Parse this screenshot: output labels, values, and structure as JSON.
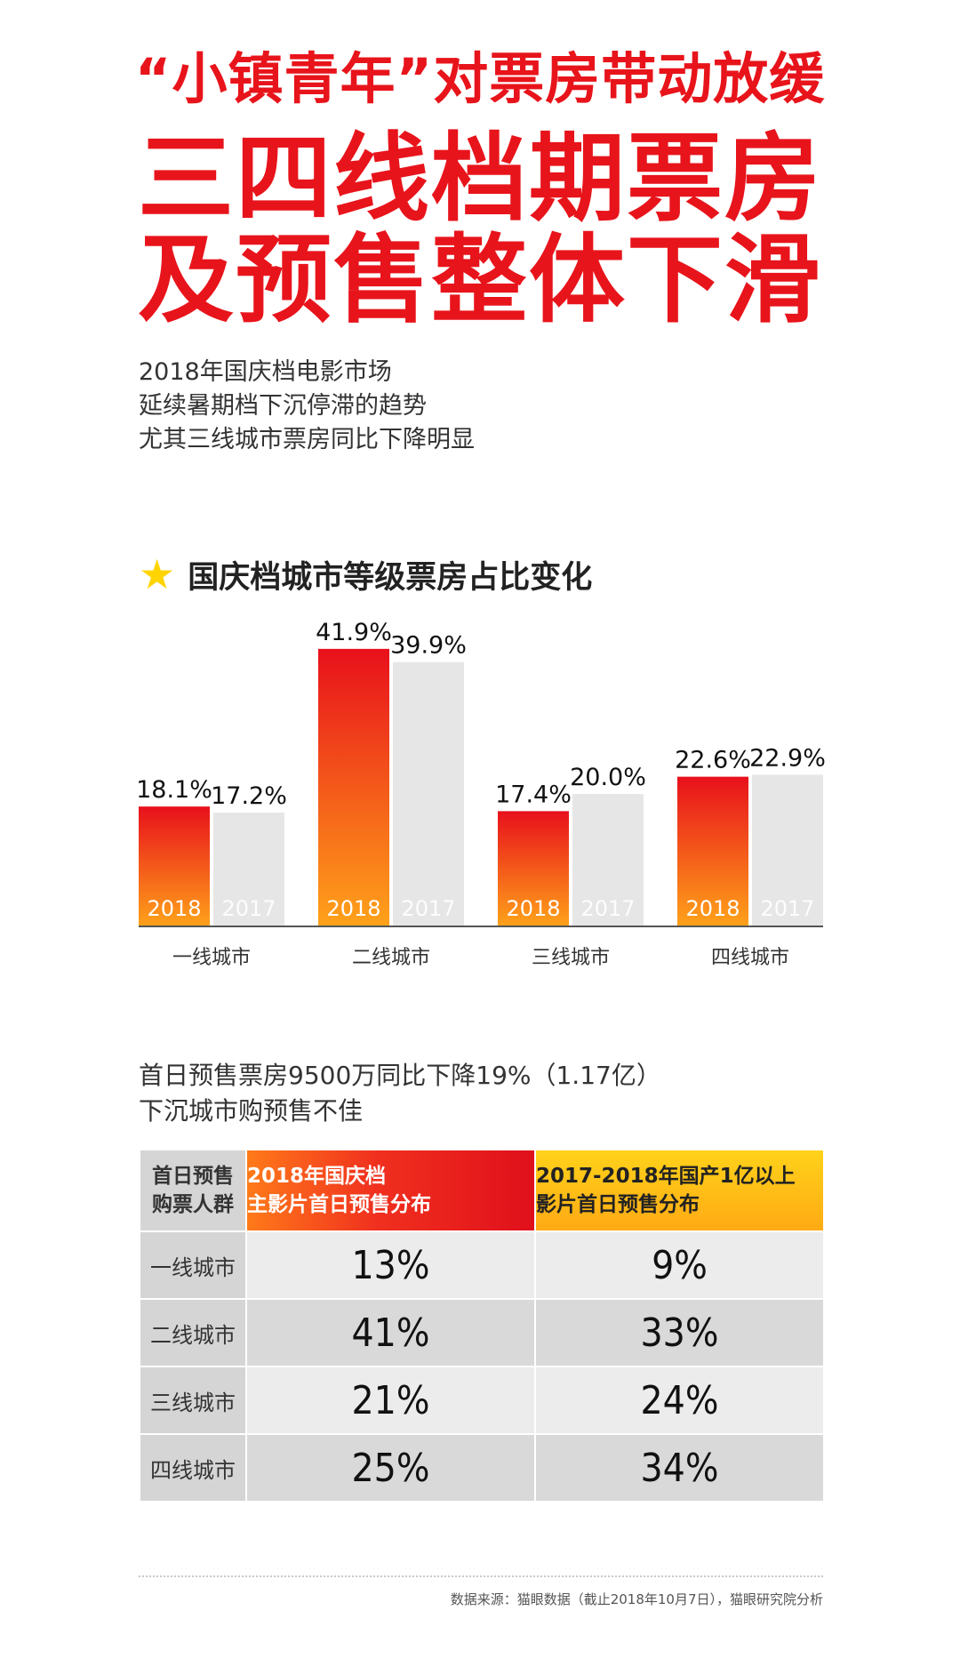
{
  "header": {
    "line1": "“小镇青年”对票房带动放缓",
    "line2": "三四线档期票房",
    "line3": "及预售整体下滑"
  },
  "intro": [
    "2018年国庆档电影市场",
    "延续暑期档下沉停滞的趋势",
    "尤其三线城市票房同比下降明显"
  ],
  "section": {
    "title": "国庆档城市等级票房占比变化",
    "icon": "star-icon"
  },
  "chart_data": {
    "type": "bar",
    "categories": [
      "一线城市",
      "二线城市",
      "三线城市",
      "四线城市"
    ],
    "series": [
      {
        "name": "2018",
        "values": [
          18.1,
          41.9,
          17.4,
          22.6
        ]
      },
      {
        "name": "2017",
        "values": [
          17.2,
          39.9,
          20.0,
          22.9
        ]
      }
    ],
    "value_labels": {
      "2018": [
        "18.1%",
        "41.9%",
        "17.4%",
        "22.6%"
      ],
      "2017": [
        "17.2%",
        "39.9%",
        "20.0%",
        "22.9%"
      ]
    },
    "ylim": [
      0,
      45
    ],
    "grid": false,
    "colors": {
      "2018_top": "#e8101b",
      "2018_bottom": "#ffa21a",
      "2017": "#e6e6e6"
    }
  },
  "presale": {
    "line1": "首日预售票房9500万同比下降19%（1.17亿）",
    "line2": "下沉城市购预售不佳"
  },
  "table": {
    "header_col0": [
      "首日预售",
      "购票人群"
    ],
    "header_col1": [
      "2018年国庆档",
      "主影片首日预售分布"
    ],
    "header_col2": [
      "2017-2018年国产1亿以上",
      "影片首日预售分布"
    ],
    "rows": [
      {
        "label": "一线城市",
        "v2018": "13%",
        "v2017": "9%"
      },
      {
        "label": "二线城市",
        "v2018": "41%",
        "v2017": "33%"
      },
      {
        "label": "三线城市",
        "v2018": "21%",
        "v2017": "24%"
      },
      {
        "label": "四线城市",
        "v2018": "25%",
        "v2017": "34%"
      }
    ]
  },
  "source": "数据来源：猫眼数据（截止2018年10月7日），猫眼研究院分析"
}
